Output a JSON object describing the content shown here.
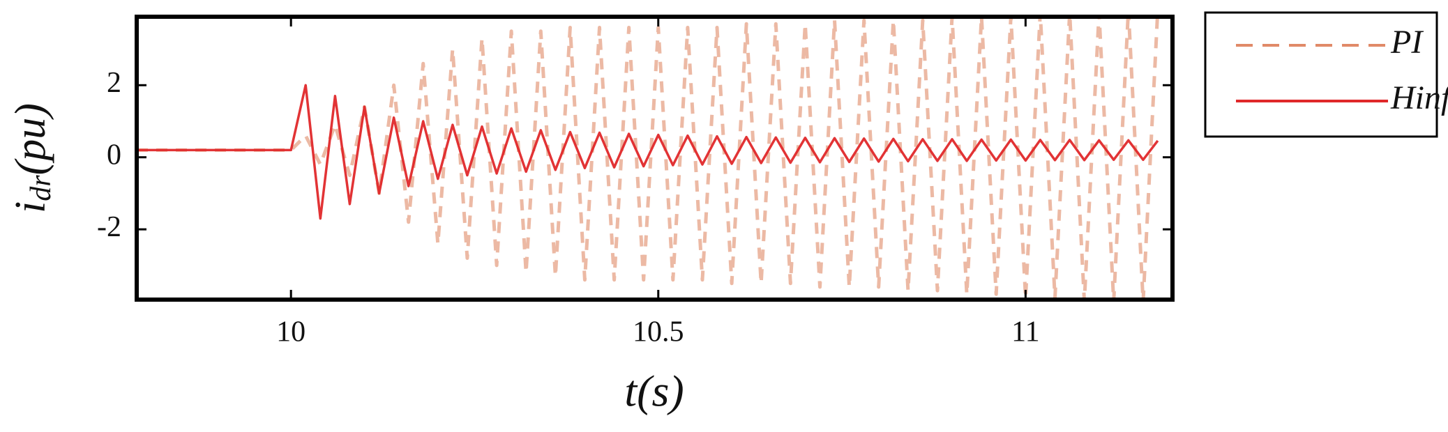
{
  "chart_data": {
    "type": "line",
    "x_label": "t(s)",
    "y_label": {
      "main": "i",
      "sub": "dr",
      "rest": "(pu)"
    },
    "x": [
      9.79,
      10.0,
      10.02,
      10.04,
      10.06,
      10.08,
      10.1,
      10.12,
      10.14,
      10.16,
      10.18,
      10.2,
      10.22,
      10.24,
      10.26,
      10.28,
      10.3,
      10.32,
      10.34,
      10.36,
      10.38,
      10.4,
      10.42,
      10.44,
      10.46,
      10.48,
      10.5,
      10.52,
      10.54,
      10.56,
      10.58,
      10.6,
      10.62,
      10.64,
      10.66,
      10.68,
      10.7,
      10.72,
      10.74,
      10.76,
      10.78,
      10.8,
      10.82,
      10.84,
      10.86,
      10.88,
      10.9,
      10.92,
      10.94,
      10.96,
      10.98,
      11.0,
      11.02,
      11.04,
      11.06,
      11.08,
      11.1,
      11.12,
      11.14,
      11.16,
      11.18
    ],
    "series": [
      {
        "name": "PI",
        "color": "#e08a68",
        "dashed": true,
        "values": [
          0.2,
          0.2,
          0.6,
          -0.2,
          0.9,
          -0.5,
          1.4,
          -1.0,
          2.0,
          -1.8,
          2.6,
          -2.4,
          3.0,
          -2.8,
          3.3,
          -3.0,
          3.5,
          -3.2,
          3.5,
          -3.3,
          3.6,
          -3.4,
          3.6,
          -3.4,
          3.6,
          -3.4,
          3.6,
          -3.4,
          3.6,
          -3.4,
          3.6,
          -3.5,
          3.7,
          -3.5,
          3.7,
          -3.5,
          3.7,
          -3.6,
          3.8,
          -3.6,
          3.8,
          -3.6,
          3.8,
          -3.7,
          3.8,
          -3.7,
          3.9,
          -3.8,
          3.9,
          -3.8,
          3.9,
          -3.9,
          4.0,
          -3.9,
          4.0,
          -4.0,
          4.0,
          -4.0,
          4.1,
          -4.0,
          4.1
        ]
      },
      {
        "name": "Hinf",
        "color": "#e0282a",
        "dashed": false,
        "values": [
          0.2,
          0.2,
          2.0,
          -1.7,
          1.7,
          -1.3,
          1.4,
          -1.0,
          1.1,
          -0.8,
          1.0,
          -0.6,
          0.9,
          -0.5,
          0.85,
          -0.45,
          0.8,
          -0.4,
          0.75,
          -0.35,
          0.7,
          -0.3,
          0.68,
          -0.28,
          0.65,
          -0.25,
          0.62,
          -0.22,
          0.6,
          -0.2,
          0.58,
          -0.18,
          0.56,
          -0.16,
          0.55,
          -0.15,
          0.54,
          -0.14,
          0.53,
          -0.13,
          0.52,
          -0.12,
          0.51,
          -0.11,
          0.5,
          -0.1,
          0.5,
          -0.1,
          0.49,
          -0.09,
          0.49,
          -0.09,
          0.48,
          -0.08,
          0.48,
          -0.08,
          0.47,
          -0.07,
          0.47,
          -0.07,
          0.46
        ]
      }
    ],
    "xlim": [
      9.79,
      11.2
    ],
    "xticks": [
      10,
      10.5,
      11
    ],
    "ylim": [
      -3.95,
      3.9
    ],
    "yticks": [
      -2,
      0,
      2
    ],
    "grid": false,
    "legend": "outside-right"
  }
}
